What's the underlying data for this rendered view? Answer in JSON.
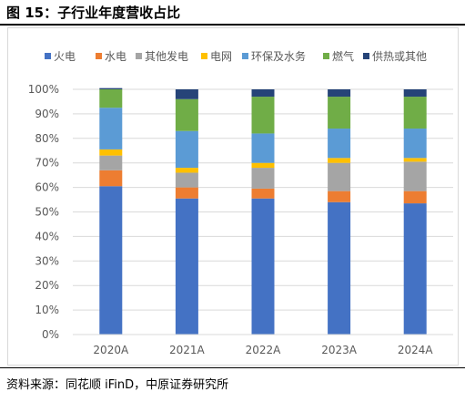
{
  "figure": {
    "title": "图 15：子行业年度营收占比",
    "source": "资料来源：同花顺 iFinD，中原证券研究所"
  },
  "chart_data": {
    "type": "bar",
    "stacked": true,
    "percent": true,
    "categories": [
      "2020A",
      "2021A",
      "2022A",
      "2023A",
      "2024A"
    ],
    "ylim": [
      0,
      100
    ],
    "yticks": [
      "0%",
      "10%",
      "20%",
      "30%",
      "40%",
      "50%",
      "60%",
      "70%",
      "80%",
      "90%",
      "100%"
    ],
    "grid": true,
    "legend_position": "top",
    "series": [
      {
        "name": "火电",
        "color": "#4472c4",
        "values": [
          60.5,
          55.5,
          55.5,
          54.0,
          53.5
        ]
      },
      {
        "name": "水电",
        "color": "#ed7d31",
        "values": [
          6.5,
          4.5,
          4.0,
          4.5,
          5.0
        ]
      },
      {
        "name": "其他发电",
        "color": "#a5a5a5",
        "values": [
          6.0,
          6.0,
          8.5,
          11.5,
          12.0
        ]
      },
      {
        "name": "电网",
        "color": "#ffc000",
        "values": [
          2.5,
          2.0,
          2.0,
          2.0,
          1.5
        ]
      },
      {
        "name": "环保及水务",
        "color": "#5b9bd5",
        "values": [
          17.0,
          15.0,
          12.0,
          12.0,
          12.0
        ]
      },
      {
        "name": "燃气",
        "color": "#70ad47",
        "values": [
          7.5,
          13.0,
          15.0,
          13.0,
          13.0
        ]
      },
      {
        "name": "供热或其他",
        "color": "#264478",
        "values": [
          0.5,
          4.0,
          3.0,
          3.0,
          3.0
        ]
      }
    ]
  }
}
